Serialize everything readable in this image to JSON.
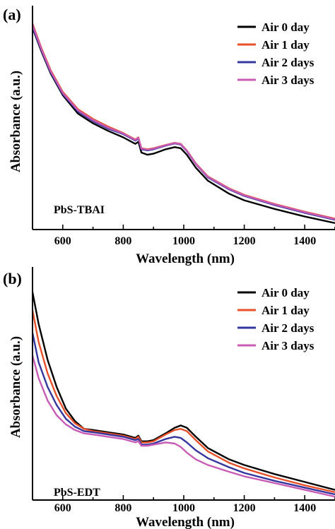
{
  "chart_data": [
    {
      "type": "line",
      "panel_label": "(a)",
      "sample_label": "PbS-TBAI",
      "xlabel": "Wavelength (nm)",
      "ylabel": "Absorbance (a.u.)",
      "xlim": [
        500,
        1500
      ],
      "ylim": [
        0,
        1
      ],
      "xticks": [
        600,
        800,
        1000,
        1200,
        1400
      ],
      "yticks_shown": false,
      "grid": false,
      "legend_position": "top-right",
      "series": [
        {
          "name": "Air 0 day",
          "color": "#000000",
          "x": [
            500,
            530,
            560,
            600,
            650,
            700,
            750,
            800,
            840,
            850,
            860,
            880,
            900,
            940,
            970,
            990,
            1010,
            1040,
            1080,
            1150,
            1200,
            1300,
            1400,
            1500
          ],
          "y": [
            0.93,
            0.82,
            0.72,
            0.62,
            0.535,
            0.49,
            0.455,
            0.425,
            0.395,
            0.405,
            0.355,
            0.345,
            0.35,
            0.37,
            0.38,
            0.375,
            0.345,
            0.285,
            0.225,
            0.165,
            0.135,
            0.095,
            0.06,
            0.03
          ]
        },
        {
          "name": "Air 1 day",
          "color": "#E8502A",
          "x": [
            500,
            530,
            560,
            600,
            650,
            700,
            750,
            800,
            840,
            850,
            860,
            880,
            900,
            940,
            970,
            990,
            1010,
            1040,
            1080,
            1150,
            1200,
            1300,
            1400,
            1500
          ],
          "y": [
            0.95,
            0.835,
            0.735,
            0.635,
            0.555,
            0.51,
            0.475,
            0.445,
            0.415,
            0.425,
            0.375,
            0.37,
            0.375,
            0.39,
            0.4,
            0.395,
            0.365,
            0.305,
            0.245,
            0.19,
            0.16,
            0.118,
            0.082,
            0.05
          ]
        },
        {
          "name": "Air 2 days",
          "color": "#35359E",
          "x": [
            500,
            530,
            560,
            600,
            650,
            700,
            750,
            800,
            840,
            850,
            860,
            880,
            900,
            940,
            970,
            990,
            1010,
            1040,
            1080,
            1150,
            1200,
            1300,
            1400,
            1500
          ],
          "y": [
            0.935,
            0.825,
            0.725,
            0.625,
            0.545,
            0.5,
            0.465,
            0.44,
            0.41,
            0.42,
            0.37,
            0.365,
            0.37,
            0.387,
            0.397,
            0.392,
            0.362,
            0.302,
            0.24,
            0.185,
            0.155,
            0.113,
            0.077,
            0.045
          ]
        },
        {
          "name": "Air 3 days",
          "color": "#C85BB5",
          "x": [
            500,
            530,
            560,
            600,
            650,
            700,
            750,
            800,
            840,
            850,
            860,
            880,
            900,
            940,
            970,
            990,
            1010,
            1040,
            1080,
            1150,
            1200,
            1300,
            1400,
            1500
          ],
          "y": [
            0.945,
            0.83,
            0.73,
            0.63,
            0.55,
            0.505,
            0.47,
            0.443,
            0.413,
            0.423,
            0.373,
            0.368,
            0.373,
            0.389,
            0.399,
            0.394,
            0.364,
            0.303,
            0.243,
            0.188,
            0.158,
            0.116,
            0.08,
            0.048
          ]
        }
      ]
    },
    {
      "type": "line",
      "panel_label": "(b)",
      "sample_label": "PbS-EDT",
      "xlabel": "Wavelength (nm)",
      "ylabel": "Absorbance (a.u.)",
      "xlim": [
        500,
        1500
      ],
      "ylim": [
        0,
        1
      ],
      "xticks": [
        600,
        800,
        1000,
        1200,
        1400
      ],
      "yticks_shown": false,
      "grid": false,
      "legend_position": "top-right",
      "series": [
        {
          "name": "Air 0 day",
          "color": "#000000",
          "x": [
            500,
            520,
            550,
            580,
            610,
            640,
            670,
            700,
            750,
            800,
            840,
            850,
            860,
            880,
            900,
            940,
            970,
            990,
            1010,
            1040,
            1080,
            1150,
            1200,
            1300,
            1400,
            1500
          ],
          "y": [
            0.92,
            0.78,
            0.62,
            0.5,
            0.405,
            0.35,
            0.315,
            0.31,
            0.3,
            0.29,
            0.275,
            0.285,
            0.26,
            0.26,
            0.265,
            0.295,
            0.32,
            0.33,
            0.32,
            0.28,
            0.23,
            0.18,
            0.155,
            0.115,
            0.08,
            0.045
          ]
        },
        {
          "name": "Air 1 day",
          "color": "#E8502A",
          "x": [
            500,
            520,
            550,
            580,
            610,
            640,
            670,
            700,
            750,
            800,
            840,
            850,
            860,
            880,
            900,
            940,
            970,
            990,
            1010,
            1040,
            1080,
            1150,
            1200,
            1300,
            1400,
            1500
          ],
          "y": [
            0.84,
            0.7,
            0.56,
            0.46,
            0.385,
            0.34,
            0.315,
            0.305,
            0.295,
            0.285,
            0.27,
            0.28,
            0.255,
            0.255,
            0.26,
            0.29,
            0.31,
            0.315,
            0.305,
            0.265,
            0.215,
            0.165,
            0.14,
            0.1,
            0.065,
            0.035
          ]
        },
        {
          "name": "Air 2 days",
          "color": "#35359E",
          "x": [
            500,
            520,
            550,
            580,
            610,
            640,
            670,
            700,
            750,
            800,
            840,
            850,
            860,
            880,
            900,
            940,
            970,
            990,
            1010,
            1040,
            1080,
            1150,
            1200,
            1300,
            1400,
            1500
          ],
          "y": [
            0.74,
            0.61,
            0.5,
            0.42,
            0.36,
            0.325,
            0.305,
            0.3,
            0.29,
            0.28,
            0.265,
            0.27,
            0.245,
            0.245,
            0.25,
            0.27,
            0.28,
            0.275,
            0.255,
            0.22,
            0.185,
            0.145,
            0.12,
            0.085,
            0.055,
            0.025
          ]
        },
        {
          "name": "Air 3 days",
          "color": "#C85BB5",
          "x": [
            500,
            520,
            550,
            580,
            610,
            640,
            670,
            700,
            750,
            800,
            840,
            850,
            860,
            880,
            900,
            940,
            970,
            990,
            1010,
            1040,
            1080,
            1150,
            1200,
            1300,
            1400,
            1500
          ],
          "y": [
            0.64,
            0.54,
            0.44,
            0.375,
            0.335,
            0.31,
            0.295,
            0.29,
            0.28,
            0.27,
            0.255,
            0.26,
            0.24,
            0.24,
            0.245,
            0.255,
            0.25,
            0.235,
            0.21,
            0.18,
            0.155,
            0.125,
            0.105,
            0.075,
            0.045,
            0.015
          ]
        }
      ]
    }
  ]
}
